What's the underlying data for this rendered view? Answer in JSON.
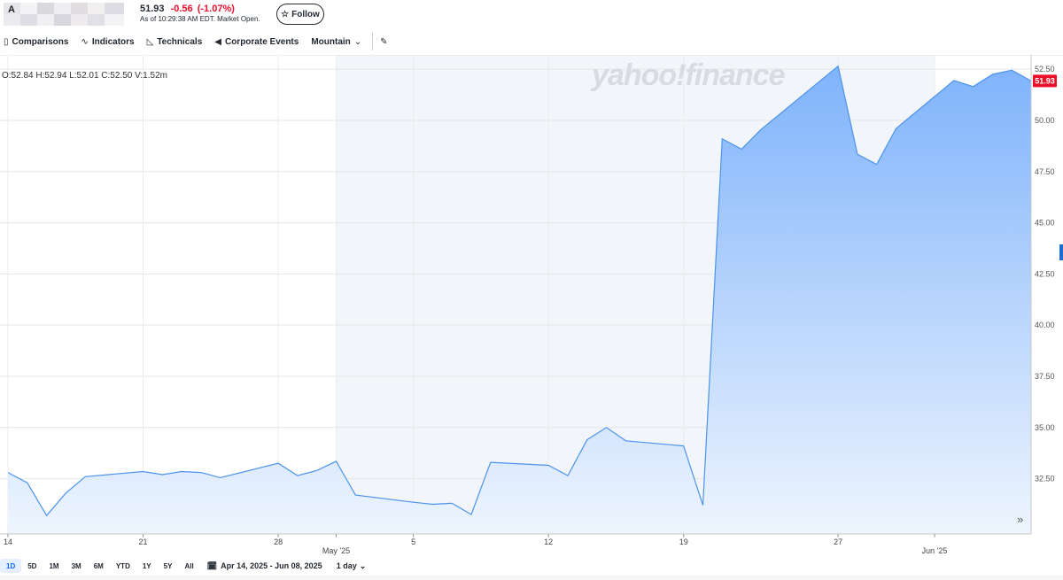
{
  "quote": {
    "ticker_visible": "A",
    "price": "51.93",
    "change": "-0.56",
    "change_pct": "(-1.07%)",
    "as_of": "As of 10:29:38 AM EDT. Market Open.",
    "follow_label": "Follow",
    "colors": {
      "down": "#eb0f29",
      "text": "#232a31"
    }
  },
  "toolbar": {
    "comparisons": "Comparisons",
    "indicators": "Indicators",
    "technicals": "Technicals",
    "corporate_events": "Corporate Events",
    "chart_type": "Mountain",
    "icons": [
      "comparisons-icon",
      "indicators-icon",
      "technicals-icon",
      "corporate-events-icon",
      "chevron-down-icon",
      "draw-pencil-icon"
    ]
  },
  "ohlc": "O:52.84  H:52.94  L:52.01  C:52.50  V:1.52m",
  "watermark": "yahoo!finance",
  "last_price_label": "51.93",
  "expand_label": "»",
  "bottom": {
    "ranges": [
      "1D",
      "5D",
      "1M",
      "3M",
      "6M",
      "YTD",
      "1Y",
      "5Y",
      "All"
    ],
    "active_range": "1D",
    "date_range": "Apr 14, 2025 - Jun 08, 2025",
    "interval": "1 day",
    "icons": [
      "calendar-icon",
      "chevron-down-icon"
    ]
  },
  "chart_data": {
    "type": "area",
    "x": [
      "2025-04-14",
      "2025-04-15",
      "2025-04-16",
      "2025-04-17",
      "2025-04-18",
      "2025-04-21",
      "2025-04-22",
      "2025-04-23",
      "2025-04-24",
      "2025-04-25",
      "2025-04-28",
      "2025-04-29",
      "2025-04-30",
      "2025-05-01",
      "2025-05-02",
      "2025-05-05",
      "2025-05-06",
      "2025-05-07",
      "2025-05-08",
      "2025-05-09",
      "2025-05-12",
      "2025-05-13",
      "2025-05-14",
      "2025-05-15",
      "2025-05-16",
      "2025-05-19",
      "2025-05-20",
      "2025-05-21",
      "2025-05-22",
      "2025-05-23",
      "2025-05-27",
      "2025-05-28",
      "2025-05-29",
      "2025-05-30",
      "2025-06-02",
      "2025-06-03",
      "2025-06-04",
      "2025-06-05",
      "2025-06-06"
    ],
    "series": [
      {
        "values": [
          32.8,
          32.3,
          30.7,
          31.8,
          32.6,
          32.85,
          32.7,
          32.85,
          32.8,
          32.55,
          33.25,
          32.65,
          32.9,
          33.35,
          31.7,
          31.35,
          31.25,
          31.3,
          30.75,
          33.3,
          33.15,
          32.65,
          34.4,
          35.0,
          34.35,
          34.1,
          31.2,
          49.1,
          48.6,
          49.55,
          52.65,
          48.35,
          47.85,
          49.6,
          51.95,
          51.65,
          52.25,
          52.45,
          51.93
        ]
      }
    ],
    "x_tick_labels": [
      "14",
      "21",
      "28",
      "May '25",
      "5",
      "12",
      "19",
      "27",
      "Jun '25"
    ],
    "y_tick_labels": [
      "32.50",
      "35.00",
      "37.50",
      "40.00",
      "42.50",
      "45.00",
      "47.50",
      "50.00",
      "52.50"
    ],
    "ylim": [
      29.8,
      53.2
    ],
    "grid": true,
    "colors": {
      "line": "#4c93ec",
      "fill_top": "#7fb3fb",
      "fill_bottom": "#eef5fe",
      "price_tag": "#eb0f29",
      "highlight_band": "#f2f5fa"
    }
  }
}
